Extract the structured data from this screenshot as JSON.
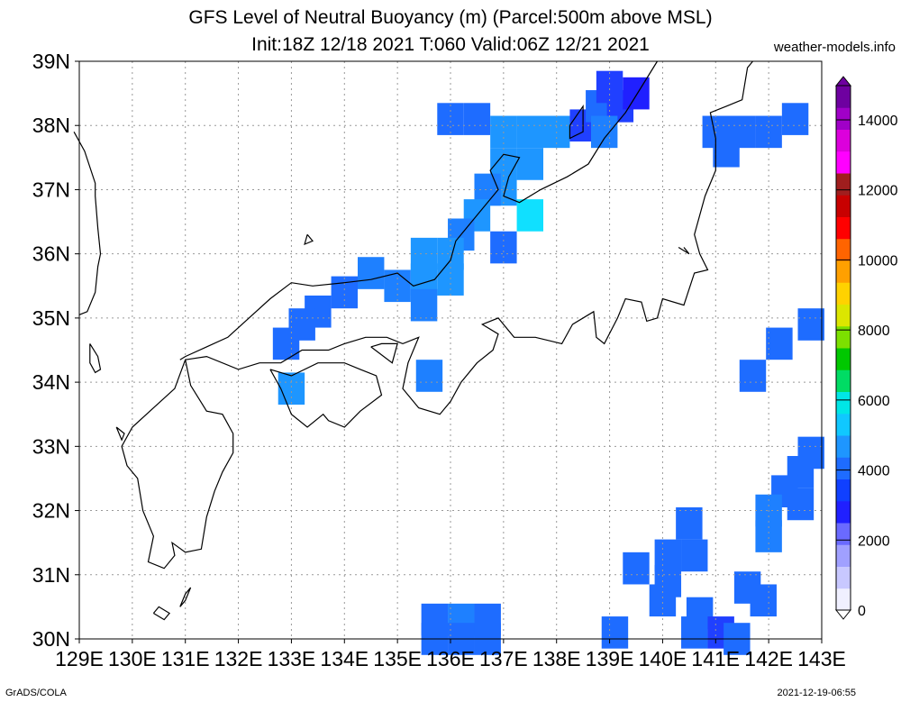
{
  "header": {
    "title_line1": "GFS Level of Neutral Buoyancy (m) (Parcel:500m above MSL)",
    "title_line2": "Init:18Z 12/18 2021 T:060 Valid:06Z 12/21 2021",
    "credit": "weather-models.info"
  },
  "footer": {
    "left": "GrADS/COLA",
    "right": "2021-12-19-06:55"
  },
  "map": {
    "lon_ticks": [
      "129E",
      "130E",
      "131E",
      "132E",
      "133E",
      "134E",
      "135E",
      "136E",
      "137E",
      "138E",
      "139E",
      "140E",
      "141E",
      "142E",
      "143E"
    ],
    "lat_ticks": [
      "39N",
      "38N",
      "37N",
      "36N",
      "35N",
      "34N",
      "33N",
      "32N",
      "31N",
      "30N"
    ],
    "lon_range": [
      129,
      143
    ],
    "lat_range": [
      30,
      39
    ],
    "grid": true
  },
  "colorbar": {
    "labels": [
      "14000",
      "12000",
      "10000",
      "8000",
      "6000",
      "4000",
      "2000",
      "0"
    ],
    "colors": [
      "#f0f0ff",
      "#c8c8ff",
      "#a0a0ff",
      "#6a6aff",
      "#2020ff",
      "#1040ff",
      "#1e6cff",
      "#1e96ff",
      "#10c8ff",
      "#00e6e6",
      "#00dc64",
      "#00c800",
      "#7ce000",
      "#dce600",
      "#ffd200",
      "#ffa000",
      "#ff6400",
      "#ff0000",
      "#c80000",
      "#a01e1e",
      "#ff00ff",
      "#dc00dc",
      "#a000c8",
      "#6e00a0"
    ]
  },
  "cells": [
    {
      "lon": 136.0,
      "lat": 38.1,
      "c": "#1e6cff"
    },
    {
      "lon": 136.5,
      "lat": 38.1,
      "c": "#1e6cff"
    },
    {
      "lon": 137.0,
      "lat": 37.9,
      "c": "#1e96ff"
    },
    {
      "lon": 137.5,
      "lat": 37.9,
      "c": "#1e96ff"
    },
    {
      "lon": 138.0,
      "lat": 37.9,
      "c": "#1e96ff"
    },
    {
      "lon": 137.0,
      "lat": 37.4,
      "c": "#1e96ff"
    },
    {
      "lon": 137.5,
      "lat": 37.4,
      "c": "#1e96ff"
    },
    {
      "lon": 137.0,
      "lat": 37.0,
      "c": "#1e96ff"
    },
    {
      "lon": 136.7,
      "lat": 37.0,
      "c": "#1e80ff"
    },
    {
      "lon": 136.5,
      "lat": 36.6,
      "c": "#1e96ff"
    },
    {
      "lon": 136.2,
      "lat": 36.3,
      "c": "#1e80ff"
    },
    {
      "lon": 137.5,
      "lat": 36.6,
      "c": "#10e0ff"
    },
    {
      "lon": 137.0,
      "lat": 36.1,
      "c": "#1e6cff"
    },
    {
      "lon": 135.5,
      "lat": 36.0,
      "c": "#1e96ff"
    },
    {
      "lon": 136.0,
      "lat": 36.0,
      "c": "#1e96ff"
    },
    {
      "lon": 135.5,
      "lat": 35.6,
      "c": "#1e96ff"
    },
    {
      "lon": 136.0,
      "lat": 35.6,
      "c": "#1e96ff"
    },
    {
      "lon": 134.5,
      "lat": 35.7,
      "c": "#1e80ff"
    },
    {
      "lon": 135.0,
      "lat": 35.5,
      "c": "#1e80ff"
    },
    {
      "lon": 134.0,
      "lat": 35.4,
      "c": "#1e6cff"
    },
    {
      "lon": 135.5,
      "lat": 35.2,
      "c": "#1e80ff"
    },
    {
      "lon": 133.5,
      "lat": 35.1,
      "c": "#1e6cff"
    },
    {
      "lon": 133.2,
      "lat": 34.9,
      "c": "#1e6cff"
    },
    {
      "lon": 132.9,
      "lat": 34.6,
      "c": "#1e6cff"
    },
    {
      "lon": 133.0,
      "lat": 33.9,
      "c": "#1e96ff"
    },
    {
      "lon": 135.6,
      "lat": 34.1,
      "c": "#1e80ff"
    },
    {
      "lon": 138.5,
      "lat": 38.0,
      "c": "#2040ff"
    },
    {
      "lon": 138.8,
      "lat": 38.3,
      "c": "#1e6cff"
    },
    {
      "lon": 139.2,
      "lat": 38.3,
      "c": "#2040ff"
    },
    {
      "lon": 139.5,
      "lat": 38.5,
      "c": "#2020ff"
    },
    {
      "lon": 139.0,
      "lat": 38.6,
      "c": "#2040ff"
    },
    {
      "lon": 138.9,
      "lat": 37.9,
      "c": "#1e80ff"
    },
    {
      "lon": 141.0,
      "lat": 37.9,
      "c": "#1e6cff"
    },
    {
      "lon": 141.5,
      "lat": 37.9,
      "c": "#1e6cff"
    },
    {
      "lon": 142.0,
      "lat": 37.9,
      "c": "#1e6cff"
    },
    {
      "lon": 142.5,
      "lat": 38.1,
      "c": "#1e6cff"
    },
    {
      "lon": 141.2,
      "lat": 37.6,
      "c": "#1e6cff"
    },
    {
      "lon": 142.8,
      "lat": 34.9,
      "c": "#1e6cff"
    },
    {
      "lon": 142.2,
      "lat": 34.6,
      "c": "#1e6cff"
    },
    {
      "lon": 141.7,
      "lat": 34.1,
      "c": "#1e6cff"
    },
    {
      "lon": 142.8,
      "lat": 32.9,
      "c": "#1e6cff"
    },
    {
      "lon": 142.6,
      "lat": 32.6,
      "c": "#1e6cff"
    },
    {
      "lon": 142.3,
      "lat": 32.3,
      "c": "#1e6cff"
    },
    {
      "lon": 142.0,
      "lat": 32.0,
      "c": "#1e80ff"
    },
    {
      "lon": 142.6,
      "lat": 32.1,
      "c": "#1e6cff"
    },
    {
      "lon": 142.0,
      "lat": 31.6,
      "c": "#1e80ff"
    },
    {
      "lon": 140.5,
      "lat": 31.8,
      "c": "#1e6cff"
    },
    {
      "lon": 140.1,
      "lat": 31.3,
      "c": "#1e6cff"
    },
    {
      "lon": 140.6,
      "lat": 31.3,
      "c": "#1e6cff"
    },
    {
      "lon": 139.5,
      "lat": 31.1,
      "c": "#1e6cff"
    },
    {
      "lon": 140.1,
      "lat": 30.9,
      "c": "#1e6cff"
    },
    {
      "lon": 140.0,
      "lat": 30.6,
      "c": "#1e6cff"
    },
    {
      "lon": 141.6,
      "lat": 30.8,
      "c": "#1e6cff"
    },
    {
      "lon": 141.9,
      "lat": 30.6,
      "c": "#1e6cff"
    },
    {
      "lon": 140.7,
      "lat": 30.4,
      "c": "#1e6cff"
    },
    {
      "lon": 140.6,
      "lat": 30.1,
      "c": "#1e6cff"
    },
    {
      "lon": 141.1,
      "lat": 30.1,
      "c": "#2040ff"
    },
    {
      "lon": 141.4,
      "lat": 30.0,
      "c": "#1e6cff"
    },
    {
      "lon": 139.1,
      "lat": 30.1,
      "c": "#1e6cff"
    },
    {
      "lon": 135.7,
      "lat": 30.3,
      "c": "#1e6cff"
    },
    {
      "lon": 136.2,
      "lat": 30.3,
      "c": "#1e80ff"
    },
    {
      "lon": 136.7,
      "lat": 30.3,
      "c": "#1e6cff"
    },
    {
      "lon": 135.7,
      "lat": 30.0,
      "c": "#1e6cff"
    },
    {
      "lon": 136.2,
      "lat": 30.0,
      "c": "#1e6cff"
    },
    {
      "lon": 136.7,
      "lat": 30.0,
      "c": "#1e6cff"
    }
  ],
  "coastlines": [
    [
      [
        129.0,
        35.05
      ],
      [
        129.15,
        35.1
      ],
      [
        129.3,
        35.4
      ],
      [
        129.35,
        35.8
      ],
      [
        129.4,
        36.0
      ],
      [
        129.35,
        36.4
      ],
      [
        129.3,
        36.9
      ],
      [
        129.3,
        37.1
      ],
      [
        129.1,
        37.6
      ],
      [
        128.9,
        37.9
      ]
    ],
    [
      [
        129.2,
        34.6
      ],
      [
        129.35,
        34.4
      ],
      [
        129.4,
        34.2
      ],
      [
        129.3,
        34.15
      ],
      [
        129.2,
        34.3
      ],
      [
        129.2,
        34.6
      ]
    ],
    [
      [
        131.0,
        34.35
      ],
      [
        130.8,
        33.9
      ],
      [
        130.4,
        33.6
      ],
      [
        130.0,
        33.3
      ],
      [
        129.8,
        33.0
      ],
      [
        129.9,
        32.7
      ],
      [
        130.1,
        32.5
      ],
      [
        130.2,
        32.0
      ],
      [
        130.4,
        31.6
      ],
      [
        130.3,
        31.2
      ],
      [
        130.6,
        31.1
      ],
      [
        130.8,
        31.3
      ],
      [
        130.75,
        31.5
      ],
      [
        131.0,
        31.35
      ],
      [
        131.3,
        31.4
      ],
      [
        131.4,
        31.9
      ],
      [
        131.55,
        32.3
      ],
      [
        131.7,
        32.6
      ],
      [
        131.9,
        32.9
      ],
      [
        131.9,
        33.2
      ],
      [
        131.7,
        33.5
      ],
      [
        131.4,
        33.55
      ],
      [
        131.1,
        33.95
      ],
      [
        131.0,
        34.35
      ]
    ],
    [
      [
        131.0,
        34.35
      ],
      [
        131.4,
        34.4
      ],
      [
        132.0,
        34.2
      ],
      [
        132.4,
        34.3
      ],
      [
        132.8,
        34.3
      ],
      [
        133.2,
        34.5
      ],
      [
        133.7,
        34.5
      ],
      [
        134.0,
        34.6
      ],
      [
        134.4,
        34.7
      ],
      [
        134.8,
        34.7
      ],
      [
        135.1,
        34.6
      ],
      [
        135.4,
        34.7
      ],
      [
        135.2,
        34.3
      ],
      [
        135.1,
        33.9
      ],
      [
        135.4,
        33.6
      ],
      [
        135.8,
        33.5
      ],
      [
        136.0,
        33.7
      ],
      [
        136.2,
        34.0
      ],
      [
        136.5,
        34.3
      ],
      [
        136.8,
        34.5
      ],
      [
        136.9,
        34.75
      ],
      [
        136.6,
        34.9
      ],
      [
        136.9,
        35.0
      ],
      [
        137.2,
        34.7
      ],
      [
        137.6,
        34.7
      ],
      [
        138.1,
        34.6
      ],
      [
        138.3,
        34.9
      ],
      [
        138.7,
        35.1
      ],
      [
        138.75,
        34.7
      ],
      [
        138.9,
        34.6
      ],
      [
        139.15,
        35.0
      ],
      [
        139.3,
        35.3
      ],
      [
        139.6,
        35.25
      ],
      [
        139.7,
        34.95
      ],
      [
        139.9,
        35.0
      ],
      [
        140.0,
        35.3
      ],
      [
        140.4,
        35.2
      ],
      [
        140.6,
        35.7
      ],
      [
        140.85,
        35.75
      ],
      [
        140.7,
        36.0
      ],
      [
        140.6,
        36.3
      ],
      [
        140.8,
        36.9
      ],
      [
        141.0,
        37.3
      ],
      [
        141.0,
        37.8
      ],
      [
        140.9,
        38.2
      ],
      [
        141.2,
        38.3
      ],
      [
        141.5,
        38.4
      ],
      [
        141.6,
        38.9
      ],
      [
        141.7,
        39.0
      ]
    ],
    [
      [
        130.9,
        34.35
      ],
      [
        131.0,
        34.4
      ],
      [
        131.4,
        34.55
      ],
      [
        131.8,
        34.7
      ],
      [
        132.2,
        35.0
      ],
      [
        132.6,
        35.3
      ],
      [
        133.0,
        35.55
      ],
      [
        133.4,
        35.5
      ],
      [
        134.0,
        35.55
      ],
      [
        134.5,
        35.6
      ],
      [
        135.0,
        35.7
      ],
      [
        135.3,
        35.5
      ],
      [
        135.7,
        35.6
      ],
      [
        136.0,
        35.9
      ],
      [
        136.1,
        36.2
      ],
      [
        136.5,
        36.6
      ],
      [
        136.9,
        37.0
      ],
      [
        136.75,
        37.3
      ],
      [
        137.0,
        37.55
      ],
      [
        137.3,
        37.5
      ],
      [
        137.1,
        37.2
      ],
      [
        137.0,
        36.9
      ],
      [
        137.3,
        36.8
      ],
      [
        137.7,
        37.0
      ],
      [
        138.2,
        37.2
      ],
      [
        138.6,
        37.4
      ],
      [
        138.9,
        37.8
      ],
      [
        139.3,
        38.2
      ],
      [
        139.6,
        38.6
      ],
      [
        139.9,
        39.0
      ]
    ],
    [
      [
        132.6,
        34.2
      ],
      [
        132.8,
        33.9
      ],
      [
        133.0,
        33.5
      ],
      [
        133.3,
        33.3
      ],
      [
        133.6,
        33.5
      ],
      [
        133.7,
        33.4
      ],
      [
        134.0,
        33.3
      ],
      [
        134.3,
        33.55
      ],
      [
        134.7,
        33.8
      ],
      [
        134.6,
        34.1
      ],
      [
        134.3,
        34.2
      ],
      [
        134.0,
        34.3
      ],
      [
        133.5,
        34.3
      ],
      [
        133.0,
        34.1
      ],
      [
        132.6,
        34.2
      ]
    ],
    [
      [
        138.25,
        38.0
      ],
      [
        138.5,
        38.3
      ],
      [
        138.5,
        37.9
      ],
      [
        138.25,
        37.8
      ],
      [
        138.25,
        38.0
      ]
    ],
    [
      [
        134.5,
        34.55
      ],
      [
        134.9,
        34.3
      ],
      [
        135.0,
        34.6
      ],
      [
        134.7,
        34.6
      ],
      [
        134.5,
        34.55
      ]
    ],
    [
      [
        130.9,
        30.5
      ],
      [
        131.0,
        30.6
      ],
      [
        131.1,
        30.8
      ],
      [
        131.0,
        30.7
      ],
      [
        130.9,
        30.5
      ]
    ],
    [
      [
        130.4,
        30.4
      ],
      [
        130.6,
        30.3
      ],
      [
        130.7,
        30.4
      ],
      [
        130.5,
        30.5
      ],
      [
        130.4,
        30.4
      ]
    ],
    [
      [
        129.7,
        33.3
      ],
      [
        129.85,
        33.2
      ],
      [
        129.8,
        33.1
      ],
      [
        129.7,
        33.3
      ]
    ],
    [
      [
        133.3,
        36.3
      ],
      [
        133.4,
        36.2
      ],
      [
        133.25,
        36.15
      ],
      [
        133.3,
        36.3
      ]
    ],
    [
      [
        140.3,
        36.1
      ],
      [
        140.5,
        36.0
      ],
      [
        140.4,
        36.1
      ]
    ]
  ]
}
